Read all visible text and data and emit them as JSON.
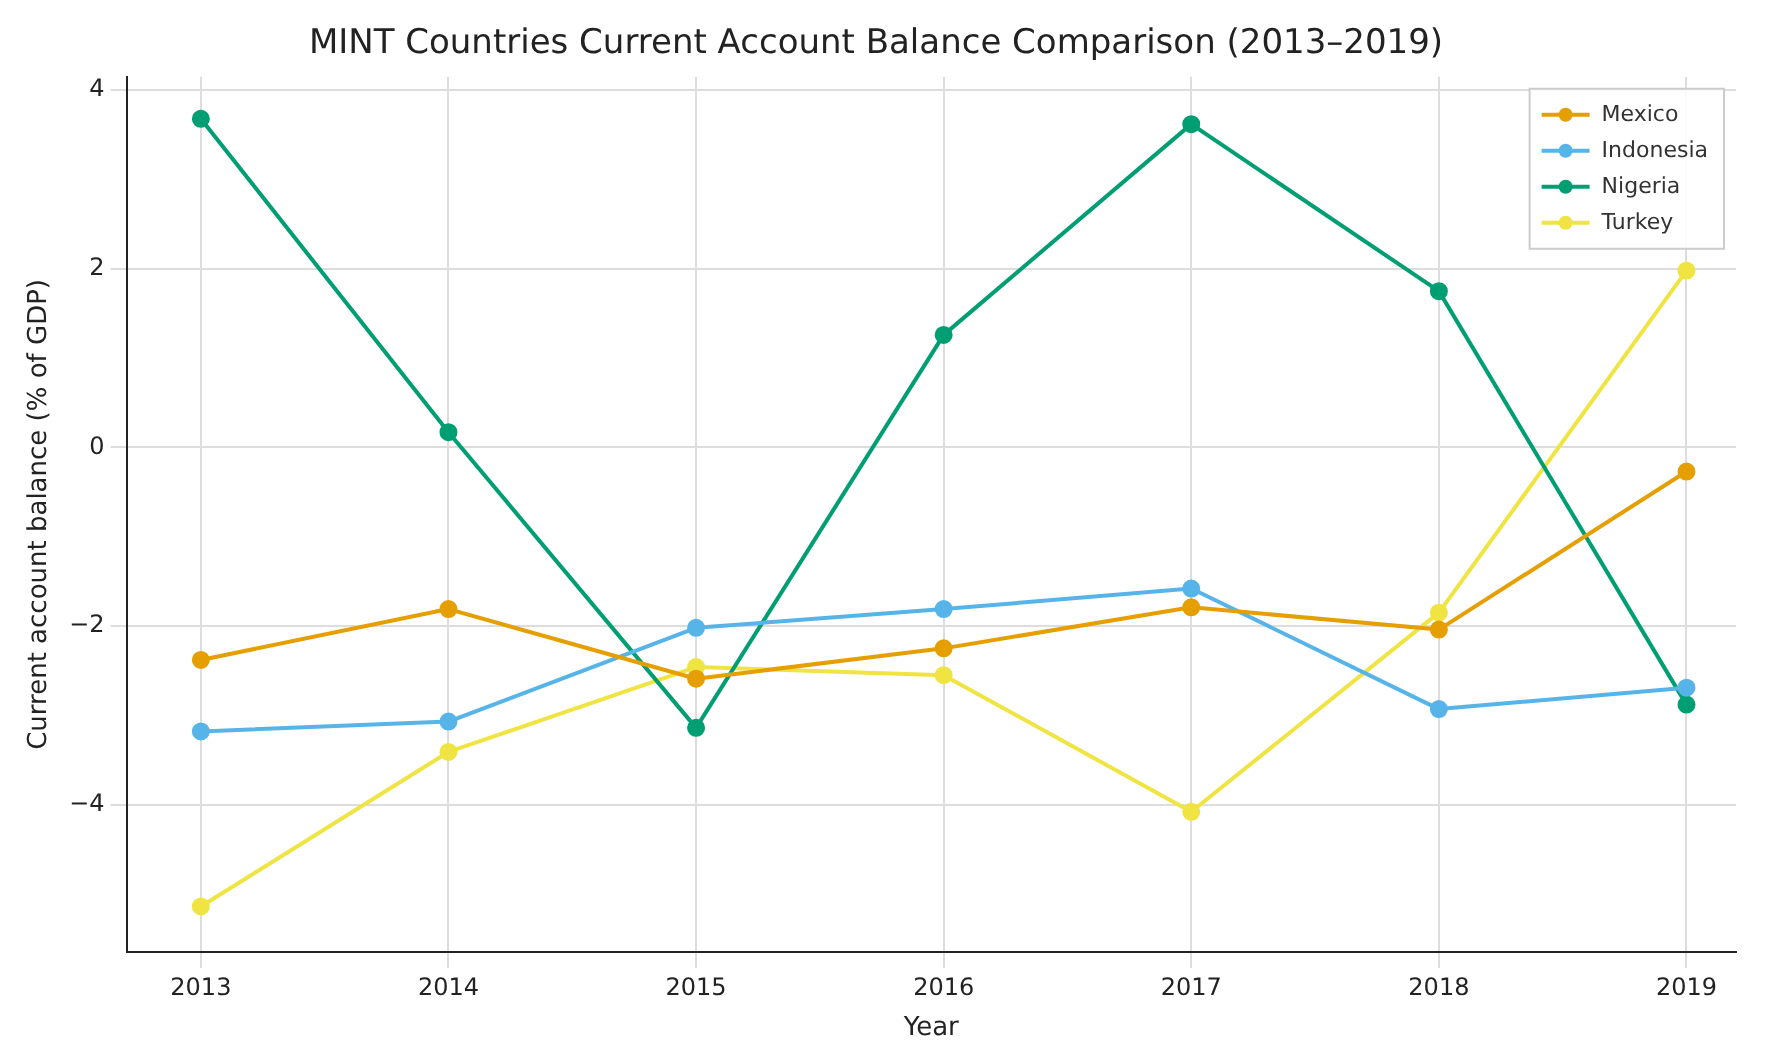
{
  "chart_data": {
    "type": "line",
    "title": "MINT Countries Current Account Balance Comparison (2013–2019)",
    "xlabel": "Year",
    "ylabel": "Current account balance (% of GDP)",
    "x": [
      2013,
      2014,
      2015,
      2016,
      2017,
      2018,
      2019
    ],
    "series": [
      {
        "name": "Mexico",
        "color": "#e69f00",
        "values": [
          -2.38,
          -1.81,
          -2.59,
          -2.25,
          -1.79,
          -2.04,
          -0.27
        ]
      },
      {
        "name": "Indonesia",
        "color": "#56b4e9",
        "values": [
          -3.18,
          -3.07,
          -2.02,
          -1.81,
          -1.58,
          -2.93,
          -2.69
        ]
      },
      {
        "name": "Nigeria",
        "color": "#009e73",
        "values": [
          3.68,
          0.17,
          -3.14,
          1.26,
          3.62,
          1.75,
          -2.88
        ]
      },
      {
        "name": "Turkey",
        "color": "#f0e442",
        "values": [
          -5.14,
          -3.41,
          -2.46,
          -2.55,
          -4.08,
          -1.85,
          1.98
        ]
      }
    ],
    "xlim": [
      2012.7,
      2019.2
    ],
    "xticks": [
      2013,
      2014,
      2015,
      2016,
      2017,
      2018,
      2019
    ],
    "ylim": [
      -5.65,
      4.15
    ],
    "yticks": [
      -4,
      -2,
      0,
      2,
      4
    ],
    "grid": true,
    "legend": "top right",
    "marker": "circle",
    "line_style": "solid"
  }
}
